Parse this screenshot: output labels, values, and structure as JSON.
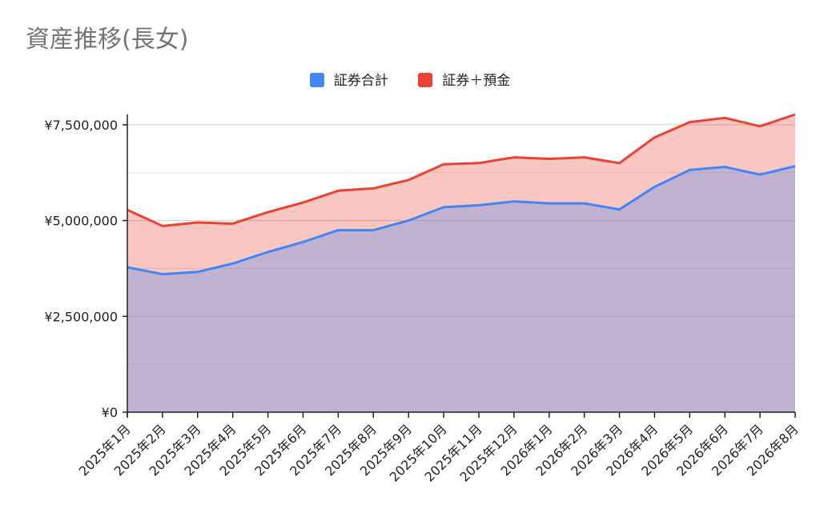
{
  "chart_data": {
    "type": "area",
    "title": "資産推移(長女)",
    "categories": [
      "2025年1月",
      "2025年2月",
      "2025年3月",
      "2025年4月",
      "2025年5月",
      "2025年6月",
      "2025年7月",
      "2025年8月",
      "2025年9月",
      "2025年10月",
      "2025年11月",
      "2025年12月",
      "2026年1月",
      "2026年2月",
      "2026年3月",
      "2026年4月",
      "2026年5月",
      "2026年6月",
      "2026年7月",
      "2026年8月"
    ],
    "series": [
      {
        "name": "証券合計",
        "color": "#4285f4",
        "values": [
          3780000,
          3600000,
          3660000,
          3880000,
          4180000,
          4440000,
          4750000,
          4750000,
          5000000,
          5350000,
          5400000,
          5500000,
          5450000,
          5450000,
          5290000,
          5880000,
          6320000,
          6400000,
          6200000,
          6420000
        ]
      },
      {
        "name": "証券＋預金",
        "color": "#ea4335",
        "values": [
          5280000,
          4860000,
          4950000,
          4920000,
          5220000,
          5470000,
          5780000,
          5840000,
          6060000,
          6470000,
          6500000,
          6650000,
          6610000,
          6650000,
          6500000,
          7170000,
          7570000,
          7680000,
          7460000,
          7770000
        ]
      }
    ],
    "ylim": [
      0,
      7770000
    ],
    "yticks": [
      0,
      2500000,
      5000000,
      7500000
    ],
    "ytick_labels": [
      "¥0",
      "¥2,500,000",
      "¥5,000,000",
      "¥7,500,000"
    ],
    "grid": true,
    "legend": "top"
  }
}
